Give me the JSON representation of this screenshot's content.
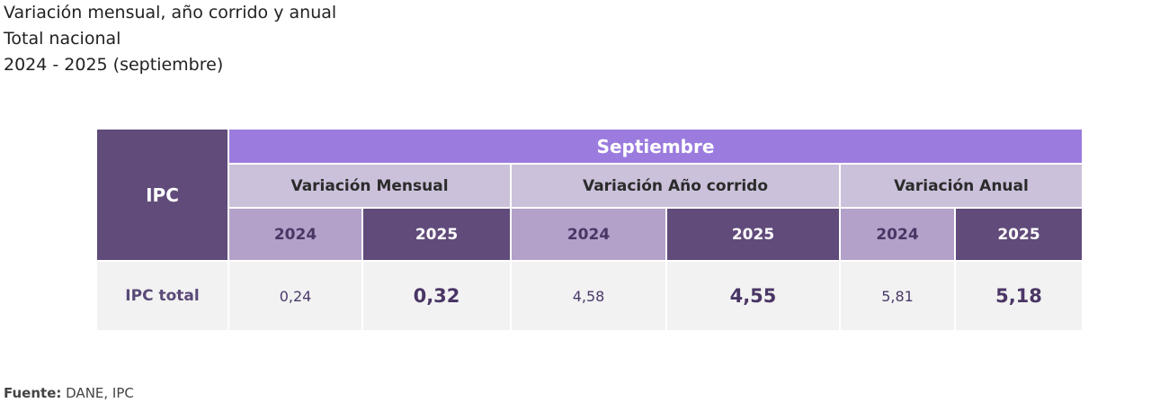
{
  "heading": {
    "line1": "Variación mensual, año corrido y anual",
    "line2": "Total nacional",
    "line3": "2024 - 2025 (septiembre)"
  },
  "table": {
    "corner_label": "IPC",
    "month": "Septiembre",
    "groups": [
      "Variación Mensual",
      "Variación Año corrido",
      "Variación Anual"
    ],
    "years": [
      "2024",
      "2025",
      "2024",
      "2025",
      "2024",
      "2025"
    ],
    "rows": [
      {
        "label": "IPC total",
        "values": [
          "0,24",
          "0,32",
          "4,58",
          "4,55",
          "5,81",
          "5,18"
        ]
      }
    ]
  },
  "source": {
    "label": "Fuente:",
    "text": " DANE, IPC"
  },
  "colors": {
    "dark_purple": "#604b7a",
    "light_purple": "#b3a1c9",
    "violet": "#9b7bde",
    "lavender": "#cbc1da",
    "row_bg": "#f2f2f2"
  }
}
